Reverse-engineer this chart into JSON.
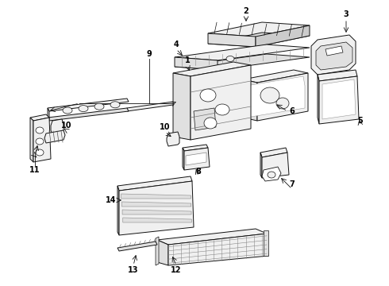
{
  "background_color": "#ffffff",
  "line_color": "#111111",
  "fig_width": 4.9,
  "fig_height": 3.6,
  "dpi": 100
}
